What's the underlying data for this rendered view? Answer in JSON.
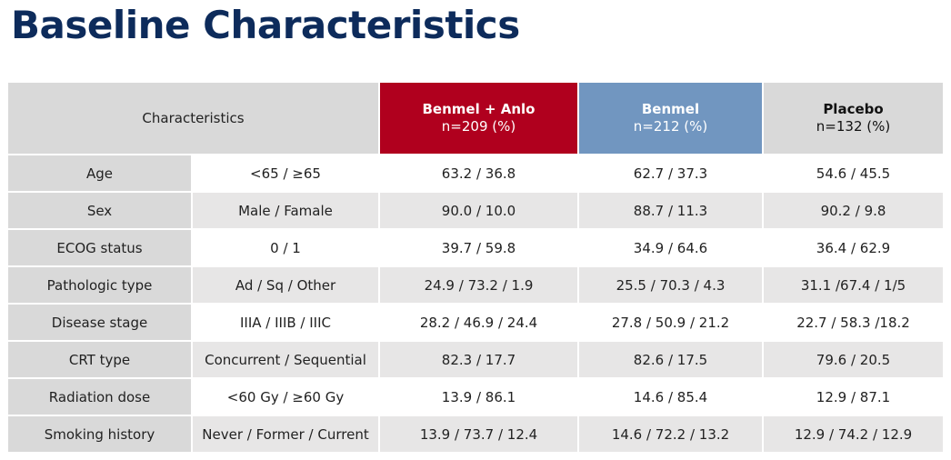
{
  "title": "Baseline Characteristics",
  "header": {
    "characteristics": "Characteristics",
    "arms": [
      {
        "name": "Benmel + Anlo",
        "n": "n=209 (%)",
        "color": "#b0001e"
      },
      {
        "name": "Benmel",
        "n": "n=212 (%)",
        "color": "#7196c0"
      },
      {
        "name": "Placebo",
        "n": "n=132 (%)",
        "color": "#d9d9d9"
      }
    ]
  },
  "rows": [
    {
      "label": "Age",
      "category": "<65 / ≥65",
      "values": [
        "63.2 / 36.8",
        "62.7 / 37.3",
        "54.6 / 45.5"
      ]
    },
    {
      "label": "Sex",
      "category": "Male / Famale",
      "values": [
        "90.0 / 10.0",
        "88.7 / 11.3",
        "90.2 / 9.8"
      ]
    },
    {
      "label": "ECOG status",
      "category": "0 / 1",
      "values": [
        "39.7 / 59.8",
        "34.9 / 64.6",
        "36.4 / 62.9"
      ]
    },
    {
      "label": "Pathologic type",
      "category": "Ad / Sq / Other",
      "values": [
        "24.9 / 73.2 / 1.9",
        "25.5 / 70.3 / 4.3",
        "31.1 /67.4 / 1/5"
      ]
    },
    {
      "label": "Disease stage",
      "category": "IIIA / IIIB / IIIC",
      "values": [
        "28.2 / 46.9 / 24.4",
        "27.8 / 50.9 / 21.2",
        "22.7 / 58.3 /18.2"
      ]
    },
    {
      "label": "CRT type",
      "category": "Concurrent / Sequential",
      "values": [
        "82.3 / 17.7",
        "82.6 / 17.5",
        "79.6 / 20.5"
      ]
    },
    {
      "label": "Radiation dose",
      "category": "<60 Gy / ≥60 Gy",
      "values": [
        "13.9 / 86.1",
        "14.6 / 85.4",
        "12.9 / 87.1"
      ]
    },
    {
      "label": "Smoking history",
      "category": "Never / Former / Current",
      "values": [
        "13.9 / 73.7 / 12.4",
        "14.6 / 72.2 / 13.2",
        "12.9 / 74.2 / 12.9"
      ]
    }
  ]
}
